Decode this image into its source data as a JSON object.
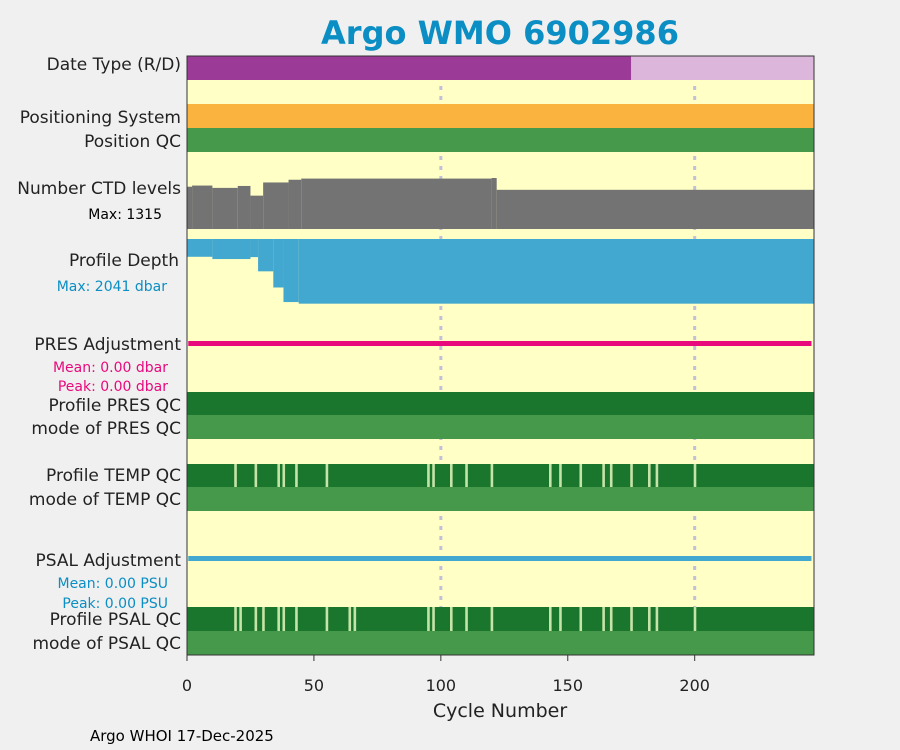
{
  "chart_data": {
    "type": "bar",
    "title": "Argo WMO 6902986",
    "xlabel": "Cycle Number",
    "xlim": [
      0,
      247
    ],
    "xticks": [
      0,
      50,
      100,
      150,
      200
    ],
    "xtick_labels": [
      "0",
      "50",
      "100",
      "150",
      "200"
    ],
    "footer": "Argo WHOI 17-Dec-2025",
    "rows": {
      "date_type": {
        "label": "Date Type (R/D)",
        "realtime_until": 175,
        "colors": {
          "R": "#9b3a97",
          "D": "#dcb7db"
        }
      },
      "positioning_system": {
        "label": "Positioning System",
        "color": "#fbb33f"
      },
      "position_qc": {
        "label": "Position QC",
        "color": "#46994a"
      },
      "ctd_levels": {
        "label": "Number CTD levels",
        "max_label": "Max: 1315",
        "max": 1315,
        "color": "#737373",
        "segments": [
          {
            "cycles": [
              0,
              2
            ],
            "levels": 1090
          },
          {
            "cycles": [
              2,
              10
            ],
            "levels": 1120
          },
          {
            "cycles": [
              10,
              20
            ],
            "levels": 1060
          },
          {
            "cycles": [
              20,
              25
            ],
            "levels": 1110
          },
          {
            "cycles": [
              25,
              30
            ],
            "levels": 860
          },
          {
            "cycles": [
              30,
              40
            ],
            "levels": 1200
          },
          {
            "cycles": [
              40,
              45
            ],
            "levels": 1270
          },
          {
            "cycles": [
              45,
              120
            ],
            "levels": 1300
          },
          {
            "cycles": [
              120,
              122
            ],
            "levels": 1315
          },
          {
            "cycles": [
              122,
              247
            ],
            "levels": 1010
          }
        ]
      },
      "profile_depth": {
        "label": "Profile Depth",
        "max_label": "Max: 2041 dbar",
        "max": 2041,
        "color": "#43a8cf",
        "segments": [
          {
            "cycles": [
              0,
              10
            ],
            "depth": 550
          },
          {
            "cycles": [
              10,
              25
            ],
            "depth": 620
          },
          {
            "cycles": [
              25,
              28
            ],
            "depth": 560
          },
          {
            "cycles": [
              28,
              34
            ],
            "depth": 1000
          },
          {
            "cycles": [
              34,
              38
            ],
            "depth": 1500
          },
          {
            "cycles": [
              38,
              44
            ],
            "depth": 1950
          },
          {
            "cycles": [
              44,
              247
            ],
            "depth": 2000
          }
        ]
      },
      "pres_adjustment": {
        "label": "PRES Adjustment",
        "mean_label": "Mean: 0.00 dbar",
        "peak_label": "Peak: 0.00 dbar",
        "mean": 0.0,
        "peak": 0.0,
        "color": "#e8097d"
      },
      "profile_pres_qc": {
        "label": "Profile PRES QC",
        "color": "#1a752d"
      },
      "mode_pres_qc": {
        "label": "mode of PRES QC",
        "color": "#46994a"
      },
      "profile_temp_qc": {
        "label": "Profile TEMP QC",
        "color": "#1a752d",
        "flagged_cycles": [
          19,
          27,
          36,
          38,
          43,
          55,
          95,
          97,
          104,
          110,
          120,
          143,
          147,
          155,
          164,
          167,
          175,
          182,
          185,
          200
        ]
      },
      "mode_temp_qc": {
        "label": "mode of TEMP QC",
        "color": "#46994a"
      },
      "psal_adjustment": {
        "label": "PSAL Adjustment",
        "mean_label": "Mean: 0.00 PSU",
        "peak_label": "Peak: 0.00 PSU",
        "mean": 0.0,
        "peak": 0.0,
        "color": "#43a8cf"
      },
      "profile_psal_qc": {
        "label": "Profile PSAL QC",
        "color": "#1a752d",
        "flagged_cycles": [
          19,
          21,
          27,
          30,
          36,
          38,
          43,
          55,
          64,
          66,
          95,
          97,
          104,
          110,
          120,
          143,
          147,
          155,
          164,
          167,
          175,
          182,
          185,
          200
        ]
      },
      "mode_psal_qc": {
        "label": "mode of PSAL QC",
        "color": "#46994a"
      }
    }
  },
  "colors": {
    "background": "#ffffc6",
    "flag": "#c6e4a8",
    "gridline": "#c0c0d8",
    "title": "#0b8ec3"
  }
}
